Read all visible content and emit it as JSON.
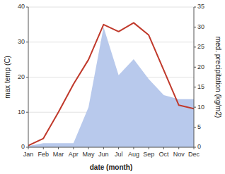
{
  "chart_data": {
    "type": "line",
    "xlabel": "date (month)",
    "ylabel": "max temp (C)",
    "y2label": "med. precipitation (kg/m2)",
    "categories": [
      "Jan",
      "Feb",
      "Mar",
      "Apr",
      "May",
      "Jun",
      "Jul",
      "Aug",
      "Sep",
      "Oct",
      "Nov",
      "Dec"
    ],
    "series": [
      {
        "type": "area",
        "axis": "y2",
        "color": "#b8c9ec",
        "values": [
          0.3,
          1.0,
          1.0,
          1.0,
          10.0,
          30.0,
          18.0,
          22.0,
          17.0,
          13.0,
          12.0,
          12.0
        ]
      },
      {
        "type": "line",
        "color": "#c0392b",
        "values": [
          0.5,
          2.5,
          10.0,
          18.0,
          25.0,
          35.0,
          33.0,
          35.5,
          32.0,
          22.0,
          12.0,
          11.0
        ]
      }
    ],
    "ylim": [
      0,
      40
    ],
    "yticks": [
      0,
      10,
      20,
      30,
      40
    ],
    "y2lim": [
      0,
      35
    ],
    "y2ticks": [
      0,
      5,
      10,
      15,
      20,
      25,
      30,
      35
    ],
    "grid": true
  }
}
